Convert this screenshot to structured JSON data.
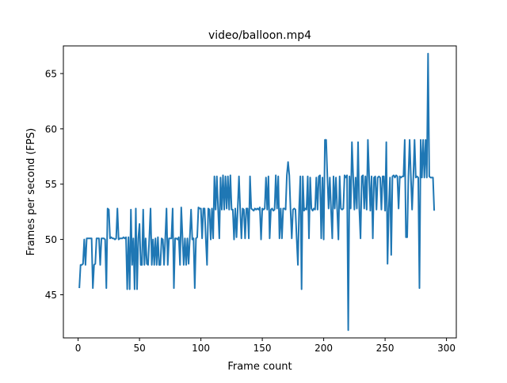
{
  "chart_data": {
    "type": "line",
    "title": "video/balloon.mp4",
    "xlabel": "Frame count",
    "ylabel": "Frames per second (FPS)",
    "xlim": [
      -12,
      308
    ],
    "ylim": [
      41.1,
      67.5
    ],
    "xticks": [
      0,
      50,
      100,
      150,
      200,
      250,
      300
    ],
    "yticks": [
      45,
      50,
      55,
      60,
      65
    ],
    "grid": false,
    "line_color": "#1f77b4",
    "series": [
      {
        "x": [
          1,
          2,
          3,
          4,
          5,
          6,
          7,
          8,
          9,
          10,
          11,
          12,
          13,
          14,
          15,
          16,
          17,
          18,
          19,
          20,
          21,
          22,
          23,
          24,
          25,
          26,
          27,
          28,
          29,
          30,
          31,
          32,
          33,
          34,
          35,
          36,
          37,
          38,
          39,
          40,
          41,
          42,
          43,
          44,
          45,
          46,
          47,
          48,
          49,
          50,
          51,
          52,
          53,
          54,
          55,
          56,
          57,
          58,
          59,
          60,
          61,
          62,
          63,
          64,
          65,
          66,
          67,
          68,
          69,
          70,
          71,
          72,
          73,
          74,
          75,
          76,
          77,
          78,
          79,
          80,
          81,
          82,
          83,
          84,
          85,
          86,
          87,
          88,
          89,
          90,
          91,
          92,
          93,
          94,
          95,
          96,
          97,
          98,
          99,
          100,
          101,
          102,
          103,
          104,
          105,
          106,
          107,
          108,
          109,
          110,
          111,
          112,
          113,
          114,
          115,
          116,
          117,
          118,
          119,
          120,
          121,
          122,
          123,
          124,
          125,
          126,
          127,
          128,
          129,
          130,
          131,
          132,
          133,
          134,
          135,
          136,
          137,
          138,
          139,
          140,
          141,
          142,
          143,
          144,
          145,
          146,
          147,
          148,
          149,
          150,
          151,
          152,
          153,
          154,
          155,
          156,
          157,
          158,
          159,
          160,
          161,
          162,
          163,
          164,
          165,
          166,
          167,
          168,
          169,
          170,
          171,
          172,
          173,
          174,
          175,
          176,
          177,
          178,
          179,
          180,
          181,
          182,
          183,
          184,
          185,
          186,
          187,
          188,
          189,
          190,
          191,
          192,
          193,
          194,
          195,
          196,
          197,
          198,
          199,
          200,
          201,
          202,
          203,
          204,
          205,
          206,
          207,
          208,
          209,
          210,
          211,
          212,
          213,
          214,
          215,
          216,
          217,
          218,
          219,
          220,
          221,
          222,
          223,
          224,
          225,
          226,
          227,
          228,
          229,
          230,
          231,
          232,
          233,
          234,
          235,
          236,
          237,
          238,
          239,
          240,
          241,
          242,
          243,
          244,
          245,
          246,
          247,
          248,
          249,
          250,
          251,
          252,
          253,
          254,
          255,
          256,
          257,
          258,
          259,
          260,
          261,
          262,
          263,
          264,
          265,
          266,
          267,
          268,
          269,
          270,
          271,
          272,
          273,
          274,
          275,
          276,
          277,
          278,
          279,
          280,
          281,
          282,
          283,
          284,
          285,
          286,
          287,
          288,
          289,
          290
        ],
        "y": [
          45.6,
          47.7,
          47.7,
          47.8,
          50.0,
          47.7,
          50.1,
          50.1,
          50.1,
          50.1,
          50.1,
          45.6,
          47.7,
          47.8,
          50.1,
          50.1,
          50.1,
          47.7,
          50.1,
          50.1,
          50.1,
          50.0,
          45.6,
          52.8,
          52.7,
          50.1,
          50.2,
          50.1,
          50.1,
          50.0,
          50.1,
          52.8,
          50.0,
          50.1,
          50.1,
          50.1,
          50.2,
          50.1,
          50.2,
          45.5,
          50.2,
          45.5,
          52.7,
          47.7,
          50.1,
          45.5,
          52.8,
          45.5,
          50.1,
          51.4,
          47.7,
          47.7,
          52.7,
          47.7,
          50.1,
          47.8,
          47.7,
          50.2,
          52.8,
          47.7,
          50.0,
          47.7,
          50.1,
          47.7,
          50.2,
          47.7,
          47.7,
          50.1,
          50.0,
          47.7,
          50.1,
          52.8,
          47.7,
          50.1,
          50.1,
          50.1,
          52.8,
          45.6,
          50.1,
          50.1,
          50.0,
          50.2,
          47.7,
          52.9,
          50.2,
          47.7,
          50.1,
          47.7,
          50.1,
          47.8,
          50.2,
          52.7,
          50.0,
          50.1,
          45.6,
          50.1,
          50.2,
          52.9,
          52.8,
          52.8,
          50.1,
          52.8,
          52.8,
          50.1,
          47.7,
          52.8,
          52.7,
          50.0,
          52.8,
          50.1,
          55.7,
          52.7,
          55.7,
          52.8,
          50.1,
          55.6,
          52.7,
          55.8,
          52.7,
          55.7,
          52.8,
          55.7,
          52.7,
          55.8,
          52.7,
          52.7,
          50.0,
          52.8,
          50.2,
          52.8,
          55.7,
          52.7,
          50.1,
          52.8,
          52.7,
          50.1,
          52.8,
          52.8,
          50.1,
          55.7,
          52.8,
          52.7,
          52.6,
          52.8,
          52.7,
          52.8,
          52.7,
          52.9,
          50.0,
          52.8,
          52.7,
          52.8,
          55.6,
          52.7,
          55.7,
          50.1,
          52.7,
          52.8,
          52.6,
          52.7,
          55.8,
          52.8,
          55.7,
          50.1,
          52.8,
          50.1,
          52.8,
          52.8,
          52.7,
          55.8,
          57.0,
          55.8,
          52.7,
          50.1,
          52.7,
          52.8,
          52.7,
          50.1,
          47.7,
          52.8,
          55.7,
          45.5,
          55.7,
          52.6,
          52.8,
          52.7,
          55.7,
          50.1,
          55.6,
          52.8,
          52.6,
          52.8,
          52.7,
          55.6,
          52.7,
          55.7,
          55.8,
          50.1,
          55.6,
          50.0,
          59.0,
          59.0,
          55.7,
          52.8,
          55.6,
          52.7,
          50.1,
          55.7,
          52.8,
          55.6,
          52.7,
          50.0,
          55.7,
          52.8,
          52.7,
          52.8,
          55.8,
          55.6,
          55.8,
          41.8,
          55.7,
          52.8,
          58.8,
          55.7,
          52.7,
          55.6,
          52.8,
          58.8,
          52.8,
          50.1,
          55.7,
          55.8,
          52.8,
          55.7,
          52.7,
          59.0,
          55.7,
          52.6,
          55.7,
          50.1,
          55.6,
          55.7,
          52.7,
          55.6,
          55.7,
          55.6,
          52.7,
          55.7,
          55.7,
          52.6,
          58.8,
          47.8,
          52.8,
          55.6,
          48.6,
          55.7,
          55.8,
          55.6,
          55.8,
          55.7,
          52.8,
          55.7,
          55.6,
          55.7,
          55.7,
          59.0,
          50.2,
          50.2,
          55.7,
          59.0,
          55.7,
          52.7,
          55.6,
          59.0,
          55.6,
          55.7,
          55.6,
          45.6,
          59.0,
          55.6,
          59.0,
          55.6,
          59.0,
          55.6,
          66.8,
          55.7,
          55.6,
          55.6,
          55.6,
          52.6
        ]
      }
    ]
  }
}
